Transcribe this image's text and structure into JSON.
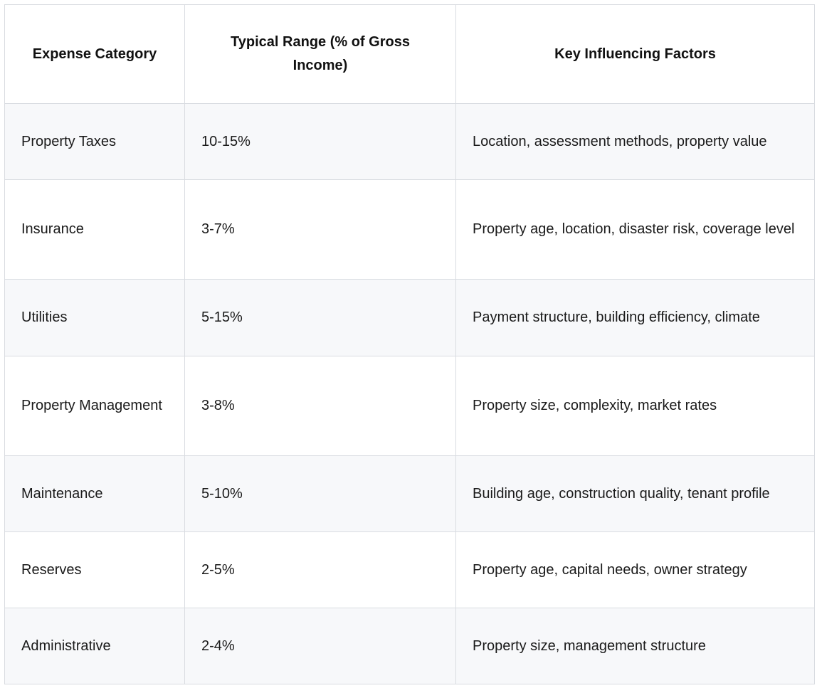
{
  "table": {
    "headers": [
      "Expense Category",
      "Typical Range (% of Gross Income)",
      "Key Influencing Factors"
    ],
    "rows": [
      [
        "Property Taxes",
        "10-15%",
        "Location, assessment methods, property value"
      ],
      [
        "Insurance",
        "3-7%",
        "Property age, location, disaster risk, coverage level"
      ],
      [
        "Utilities",
        "5-15%",
        "Payment structure, building efficiency, climate"
      ],
      [
        "Property Management",
        "3-8%",
        "Property size, complexity, market rates"
      ],
      [
        "Maintenance",
        "5-10%",
        "Building age, construction quality, tenant profile"
      ],
      [
        "Reserves",
        "2-5%",
        "Property age, capital needs, owner strategy"
      ],
      [
        "Administrative",
        "2-4%",
        "Property size, management structure"
      ]
    ]
  }
}
